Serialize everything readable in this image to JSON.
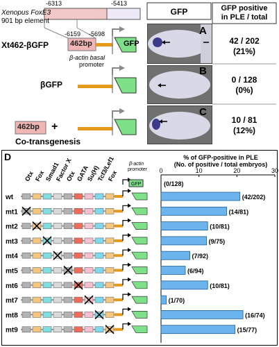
{
  "top": {
    "genomic_coord_left": "-6313",
    "genomic_coord_right": "-5413",
    "element_name": "Xenopus FoxE3",
    "element_size": "901 bp element",
    "sub_coord_left": "-6159",
    "sub_coord_right": "-5698",
    "construct_main": "Xt462-βGFP",
    "box_462": "462bp",
    "box_gfp": "GFP",
    "promoter_label_line1": "β-actin basal",
    "promoter_label_line2": "promoter",
    "construct_b": "βGFP",
    "construct_c_box": "462bp",
    "construct_c_plus": "+",
    "construct_c_label": "Co-transgenesis",
    "gfp_header": "GFP",
    "pos_header_line1": "GFP positive",
    "pos_header_line2": "in PLE / total",
    "panels": [
      {
        "letter": "A",
        "count": "42 / 202",
        "percent": "(21%)"
      },
      {
        "letter": "B",
        "count": "0 / 128",
        "percent": "(0%)"
      },
      {
        "letter": "C",
        "count": "10 / 81",
        "percent": "(12%)"
      }
    ]
  },
  "bottom": {
    "panel_letter": "D",
    "factors": [
      "Otx",
      "Fox",
      "Smad1",
      "Factor X",
      "Otx",
      "GATA",
      "Su(H)",
      "Tcf3/Lef1",
      "Fox"
    ],
    "factor_colors": [
      "#b3b3b3",
      "#f5c77e",
      "#7fdfe0",
      "#d9d9d9",
      "#b3b3b3",
      "#f06b5a",
      "#f7c0d0",
      "#7fd8ec",
      "#f5c77e"
    ],
    "promoter_label_line1": "β-actin",
    "promoter_label_line2": "promoter",
    "gfp_box": "GFP",
    "axis_title_line1": "% of GFP-positive in PLE",
    "axis_title_line2": "(No. of positive / total embryos)",
    "control_label": "(0/128)"
  },
  "chart_data": {
    "type": "bar",
    "orientation": "horizontal",
    "categories": [
      "wt",
      "mt1",
      "mt2",
      "mt3",
      "mt4",
      "mt5",
      "mt6",
      "mt7",
      "mt8",
      "mt9"
    ],
    "values": [
      20.8,
      17.3,
      12.3,
      12.0,
      7.6,
      6.4,
      12.3,
      1.4,
      21.6,
      19.5
    ],
    "labels": [
      "(42/202)",
      "(14/81)",
      "(10/81)",
      "(9/75)",
      "(7/92)",
      "(6/94)",
      "(10/81)",
      "(1/70)",
      "(16/74)",
      "(15/77)"
    ],
    "mutated_site_index": [
      null,
      0,
      1,
      2,
      3,
      4,
      5,
      6,
      7,
      8
    ],
    "xlim": [
      0,
      30
    ],
    "xticks": [
      "0",
      "10",
      "20",
      "30"
    ],
    "bar_color": "#6cb4ee",
    "grid": false
  }
}
